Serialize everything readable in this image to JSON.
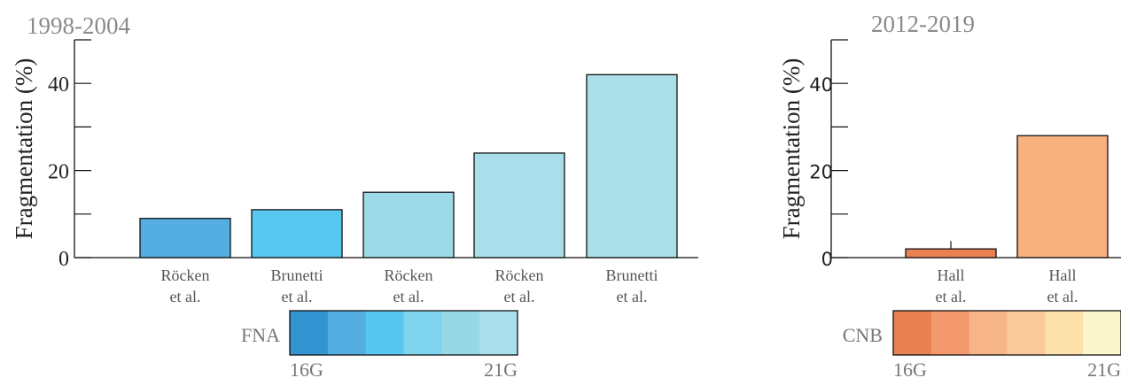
{
  "chart_data": [
    {
      "type": "bar",
      "title": "1998-2004",
      "ylabel": "Fragmentation (%)",
      "ylim": [
        0,
        50
      ],
      "yticks": [
        0,
        20,
        40
      ],
      "categories": [
        "Röcken\net al.",
        "Brunetti\net al.",
        "Röcken\net al.",
        "Röcken\net al.",
        "Brunetti\net al."
      ],
      "values": [
        9,
        11,
        15,
        24,
        42
      ],
      "bar_colors": [
        "#55aee1",
        "#57c9f1",
        "#9dd9e6",
        "#a9dfea",
        "#abdfea"
      ],
      "colorbar": {
        "label": "FNA",
        "start_label": "16G",
        "end_label": "21G",
        "colors": [
          "#3493d1",
          "#55aee1",
          "#56c8f0",
          "#7fd4ed",
          "#98d8e6",
          "#a9dfea"
        ]
      }
    },
    {
      "type": "bar",
      "title": "2012-2019",
      "ylabel": "Fragmentation (%)",
      "ylim": [
        0,
        50
      ],
      "yticks": [
        0,
        20,
        40
      ],
      "categories": [
        "Hall\net al.",
        "Hall\net al."
      ],
      "values": [
        2,
        28
      ],
      "errors": [
        1.8,
        0
      ],
      "bar_colors": [
        "#e98152",
        "#f9b07f"
      ],
      "colorbar": {
        "label": "CNB",
        "start_label": "16G",
        "end_label": "21G",
        "colors": [
          "#e8804f",
          "#f4996c",
          "#f8b489",
          "#fbca9a",
          "#fde1aa",
          "#fbf6cd"
        ]
      }
    }
  ]
}
